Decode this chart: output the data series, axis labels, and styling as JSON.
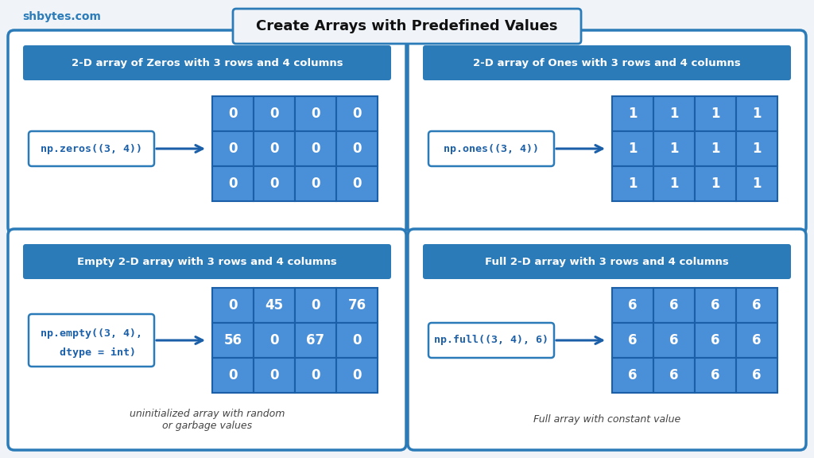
{
  "title": "Create Arrays with Predefined Values",
  "watermark": "shbytes.com",
  "bg_color": "#f0f4f8",
  "panel_bg": "#ffffff",
  "header_bg": "#2b7bb9",
  "header_text_color": "#ffffff",
  "cell_bg": "#4a90d9",
  "cell_border": "#1a5fa8",
  "cell_text_color": "#ffffff",
  "border_color": "#2b7bb9",
  "code_border": "#2b7bb9",
  "code_text_color": "#1a5fa8",
  "arrow_color": "#1a5fa8",
  "note_color": "#444444",
  "title_color": "#111111",
  "watermark_color": "#2b7bb9",
  "panels": [
    {
      "title": "2-D array of Zeros with 3 rows and 4 columns",
      "code": "np.zeros((3, 4))",
      "code_lines": 1,
      "matrix": [
        [
          "0",
          "0",
          "0",
          "0"
        ],
        [
          "0",
          "0",
          "0",
          "0"
        ],
        [
          "0",
          "0",
          "0",
          "0"
        ]
      ],
      "note": "",
      "col": 0,
      "row": 1
    },
    {
      "title": "2-D array of Ones with 3 rows and 4 columns",
      "code": "np.ones((3, 4))",
      "code_lines": 1,
      "matrix": [
        [
          "1",
          "1",
          "1",
          "1"
        ],
        [
          "1",
          "1",
          "1",
          "1"
        ],
        [
          "1",
          "1",
          "1",
          "1"
        ]
      ],
      "note": "",
      "col": 1,
      "row": 1
    },
    {
      "title": "Empty 2-D array with 3 rows and 4 columns",
      "code": "np.empty((3, 4),\n  dtype = int)",
      "code_lines": 2,
      "matrix": [
        [
          "0",
          "45",
          "0",
          "76"
        ],
        [
          "56",
          "0",
          "67",
          "0"
        ],
        [
          "0",
          "0",
          "0",
          "0"
        ]
      ],
      "note": "uninitialized array with random\nor garbage values",
      "col": 0,
      "row": 0
    },
    {
      "title": "Full 2-D array with 3 rows and 4 columns",
      "code": "np.full((3, 4), 6)",
      "code_lines": 1,
      "matrix": [
        [
          "6",
          "6",
          "6",
          "6"
        ],
        [
          "6",
          "6",
          "6",
          "6"
        ],
        [
          "6",
          "6",
          "6",
          "6"
        ]
      ],
      "note": "Full array with constant value",
      "col": 1,
      "row": 0
    }
  ]
}
